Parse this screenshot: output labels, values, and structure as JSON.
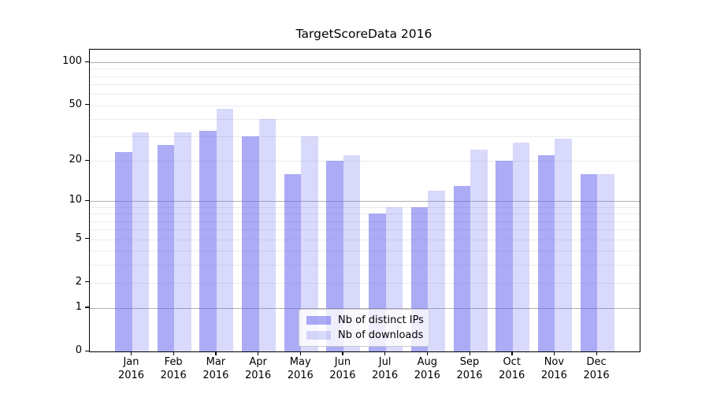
{
  "title": "TargetScoreData 2016",
  "chart_data": {
    "type": "bar",
    "title": "TargetScoreData 2016",
    "categories": [
      "Jan",
      "Feb",
      "Mar",
      "Apr",
      "May",
      "Jun",
      "Jul",
      "Aug",
      "Sep",
      "Oct",
      "Nov",
      "Dec"
    ],
    "category_year": "2016",
    "series": [
      {
        "name": "Nb of distinct IPs",
        "color": "rgba(102,102,238,0.55)",
        "values": [
          23,
          26,
          33,
          30,
          16,
          20,
          8,
          9,
          13,
          20,
          22,
          16
        ]
      },
      {
        "name": "Nb of downloads",
        "color": "rgba(102,102,238,0.25)",
        "values": [
          32,
          32,
          47,
          40,
          30,
          22,
          9,
          12,
          24,
          27,
          29,
          16
        ]
      }
    ],
    "xlabel": "",
    "ylabel": "",
    "yscale": "log1p",
    "ylim": [
      0,
      118
    ],
    "yticks": [
      100,
      50,
      20,
      10,
      5,
      2,
      1,
      0
    ],
    "major_gridlines": [
      1,
      10,
      100
    ],
    "minor_gridlines": [
      2,
      3,
      4,
      5,
      6,
      7,
      8,
      9,
      20,
      30,
      40,
      50,
      60,
      70,
      80,
      90
    ],
    "grid": true,
    "legend_position": "lower center",
    "colors": {
      "major_grid": "#b0b0b0",
      "minor_grid": "#ebebeb",
      "spine": "#000000"
    }
  }
}
